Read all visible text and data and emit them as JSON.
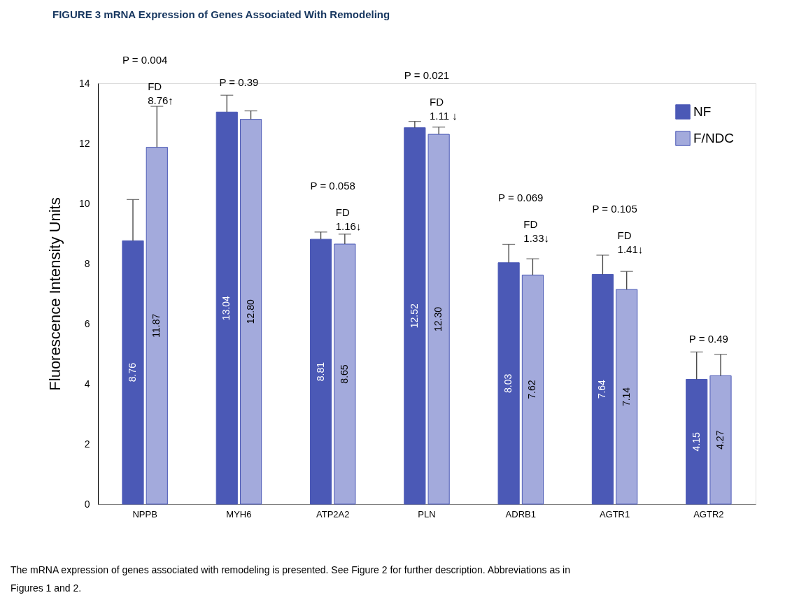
{
  "chart_data": {
    "type": "bar",
    "title": "FIGURE 3 mRNA Expression of Genes Associated With Remodeling",
    "ylabel": "Fluorescence Intensity Units",
    "categories": [
      "NPPB",
      "MYH6",
      "ATP2A2",
      "PLN",
      "ADRB1",
      "AGTR1",
      "AGTR2"
    ],
    "series": [
      {
        "name": "NF",
        "color": "#4b59b6",
        "values": [
          8.76,
          13.04,
          8.81,
          12.52,
          8.03,
          7.64,
          4.15
        ],
        "value_labels": [
          "8.76",
          "13.04",
          "8.81",
          "12.52",
          "8.03",
          "7.64",
          "4.15"
        ],
        "errors": [
          [
            8.76,
            10.13
          ],
          [
            13.04,
            13.6
          ],
          [
            8.81,
            9.05
          ],
          [
            12.52,
            12.73
          ],
          [
            8.03,
            8.64
          ],
          [
            7.64,
            8.28
          ],
          [
            4.15,
            5.06
          ]
        ]
      },
      {
        "name": "F/NDC",
        "color": "#a3aadc",
        "values": [
          11.87,
          12.8,
          8.65,
          12.3,
          7.62,
          7.14,
          4.27
        ],
        "value_labels": [
          "11.87",
          "12.80",
          "8.65",
          "12.30",
          "7.62",
          "7.14",
          "4.27"
        ],
        "errors": [
          [
            11.87,
            13.23
          ],
          [
            12.8,
            13.08
          ],
          [
            8.65,
            8.98
          ],
          [
            12.3,
            12.54
          ],
          [
            7.62,
            8.16
          ],
          [
            7.14,
            7.74
          ],
          [
            4.27,
            4.98
          ]
        ]
      }
    ],
    "ylim": [
      0,
      14
    ],
    "yticks": [
      0,
      2,
      4,
      6,
      8,
      10,
      12,
      14
    ],
    "grid": false,
    "legend": "top right",
    "annotations": [
      "P = 0.004",
      "FD\n8.76↑",
      "P = 0.39",
      "P = 0.058",
      "FD\n1.16↓",
      "P = 0.021",
      "FD\n1.11 ↓",
      "P = 0.069",
      "FD\n1.33↓",
      "P = 0.105",
      "FD\n1.41↓",
      "P = 0.49",
      "The mRNA expression of genes associated with remodeling is presented. See Figure 2 for further description. Abbreviations as in Figures 1 and 2."
    ]
  }
}
